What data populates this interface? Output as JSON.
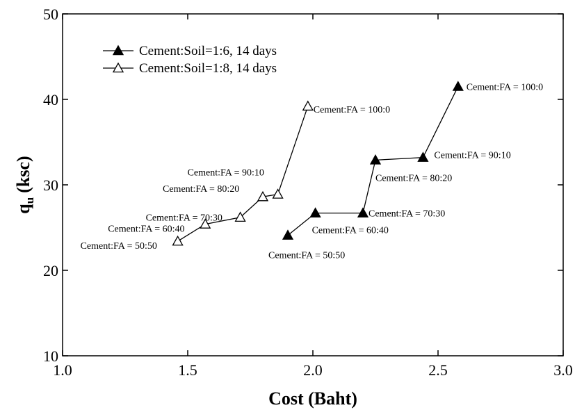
{
  "chart_data": {
    "type": "scatter",
    "xlabel": "Cost (Baht)",
    "ylabel": {
      "symbol": "q",
      "subscript": "u",
      "unit": "(ksc)"
    },
    "xlim": [
      1.0,
      3.0
    ],
    "xticks": [
      {
        "value": 1.0,
        "label": "1.0"
      },
      {
        "value": 1.5,
        "label": "1.5"
      },
      {
        "value": 2.0,
        "label": "2.0"
      },
      {
        "value": 2.5,
        "label": "2.5"
      },
      {
        "value": 3.0,
        "label": "3.0"
      }
    ],
    "ylim": [
      10,
      50
    ],
    "yticks": [
      10,
      20,
      30,
      40,
      50
    ],
    "legend": "upper-left",
    "series": [
      {
        "name": "Cement:Soil=1:6, 14 days",
        "color": "#000000",
        "marker": "filled-triangle",
        "x": [
          1.9,
          2.01,
          2.2,
          2.25,
          2.44,
          2.58
        ],
        "values": [
          24.1,
          26.7,
          26.7,
          32.9,
          33.2,
          41.5
        ],
        "point_labels": [
          "Cement:FA = 50:50",
          "Cement:FA = 60:40",
          "Cement:FA = 70:30",
          "Cement:FA = 80:20",
          "Cement:FA = 90:10",
          "Cement:FA = 100:0"
        ]
      },
      {
        "name": "Cement:Soil=1:8, 14 days",
        "color": "#000000",
        "marker": "open-triangle",
        "x": [
          1.46,
          1.57,
          1.71,
          1.8,
          1.86,
          1.98
        ],
        "values": [
          23.4,
          25.4,
          26.2,
          28.6,
          28.9,
          39.2
        ],
        "point_labels": [
          "Cement:FA = 50:50",
          "Cement:FA = 60:40",
          "Cement:FA = 70:30",
          "Cement:FA = 80:20",
          "Cement:FA = 90:10",
          "Cement:FA = 100:0"
        ]
      }
    ]
  }
}
